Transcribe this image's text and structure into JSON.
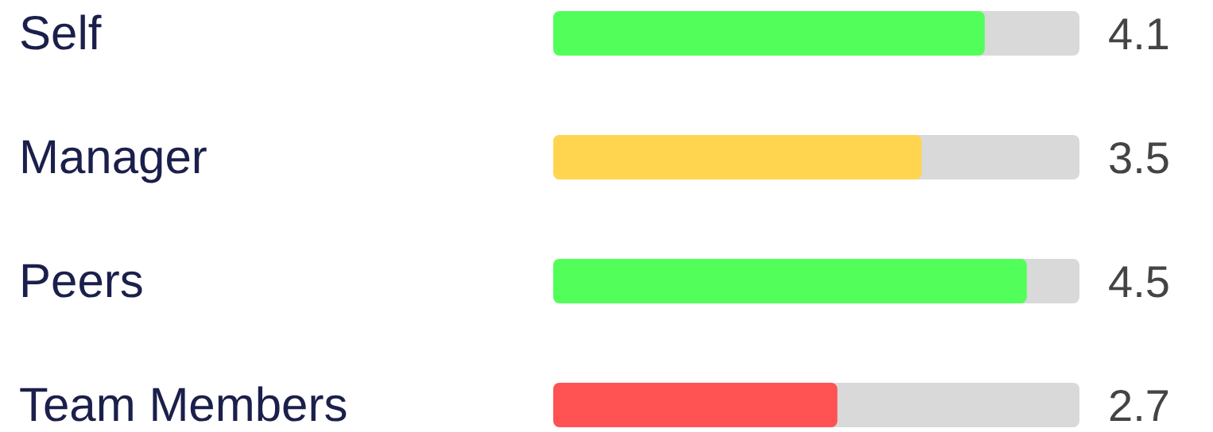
{
  "chart_data": {
    "type": "bar",
    "orientation": "horizontal",
    "categories": [
      "Self",
      "Manager",
      "Peers",
      "Team Members"
    ],
    "values": [
      4.1,
      3.5,
      4.5,
      2.7
    ],
    "colors": [
      "#52ff5a",
      "#ffd54f",
      "#52ff5a",
      "#ff5252"
    ],
    "xlim": [
      0,
      5
    ],
    "tick_labels": "y",
    "data_labels": true
  }
}
